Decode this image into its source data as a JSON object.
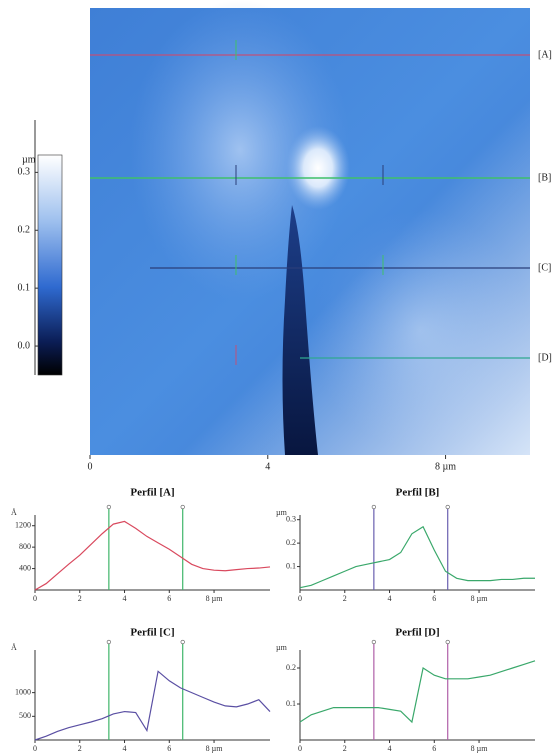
{
  "chart_data": [
    {
      "type": "image",
      "xlim": [
        0,
        9.9
      ],
      "xticks": [
        0,
        4,
        {
          "value": 8,
          "label": "8 µm"
        }
      ],
      "profile_labels": [
        "[A]",
        "[B]",
        "[C]",
        "[D]"
      ],
      "colorbar": {
        "unit": "µm",
        "lim": [
          -0.05,
          0.33
        ],
        "ticks": [
          {
            "value": 0,
            "label": "0.0"
          },
          0.1,
          0.2,
          0.3
        ]
      }
    },
    {
      "type": "line",
      "title": "Perfil [A]",
      "ylabel": "Å",
      "color": "#d9495e",
      "x": [
        0,
        0.5,
        1,
        1.5,
        2,
        2.5,
        3,
        3.5,
        4,
        4.5,
        5,
        5.5,
        6,
        6.5,
        7,
        7.5,
        8,
        8.5,
        9,
        9.5,
        10,
        10.5
      ],
      "values": [
        0,
        120,
        300,
        480,
        650,
        850,
        1050,
        1230,
        1280,
        1150,
        1000,
        880,
        760,
        620,
        480,
        400,
        370,
        360,
        380,
        400,
        410,
        430
      ],
      "xlim": [
        0,
        10.5
      ],
      "xticks": [
        0,
        2,
        4,
        6,
        {
          "value": 8,
          "label": "8 µm"
        }
      ],
      "ylim": [
        0,
        1400
      ],
      "yticks": [
        400,
        800,
        1200
      ],
      "cursors": [
        3.3,
        6.6
      ],
      "cursor_color": "#3fb56a"
    },
    {
      "type": "line",
      "title": "Perfil [B]",
      "ylabel": "µm",
      "color": "#3aa86b",
      "x": [
        0,
        0.5,
        1,
        1.5,
        2,
        2.5,
        3,
        3.5,
        4,
        4.5,
        5,
        5.5,
        6,
        6.5,
        7,
        7.5,
        8,
        8.5,
        9,
        9.5,
        10,
        10.5
      ],
      "values": [
        0.01,
        0.02,
        0.04,
        0.06,
        0.08,
        0.1,
        0.11,
        0.12,
        0.13,
        0.16,
        0.24,
        0.27,
        0.17,
        0.08,
        0.05,
        0.04,
        0.04,
        0.04,
        0.045,
        0.045,
        0.05,
        0.05
      ],
      "xlim": [
        0,
        10.5
      ],
      "xticks": [
        0,
        2,
        4,
        6,
        {
          "value": 8,
          "label": "8 µm"
        }
      ],
      "ylim": [
        0,
        0.32
      ],
      "yticks": [
        0.1,
        0.2,
        0.3
      ],
      "cursors": [
        3.3,
        6.6
      ],
      "cursor_color": "#6a5fb0"
    },
    {
      "type": "line",
      "title": "Perfil [C]",
      "ylabel": "Å",
      "color": "#5a4fa3",
      "x": [
        0,
        0.5,
        1,
        1.5,
        2,
        2.5,
        3,
        3.5,
        4,
        4.5,
        5,
        5.5,
        6,
        6.5,
        7,
        7.5,
        8,
        8.5,
        9,
        9.5,
        10,
        10.5
      ],
      "values": [
        0,
        80,
        180,
        260,
        320,
        380,
        450,
        550,
        600,
        580,
        200,
        1450,
        1250,
        1100,
        1000,
        900,
        800,
        720,
        700,
        760,
        850,
        600
      ],
      "xlim": [
        0,
        10.5
      ],
      "xticks": [
        0,
        2,
        4,
        6,
        {
          "value": 8,
          "label": "8 µm"
        }
      ],
      "ylim": [
        0,
        1900
      ],
      "yticks": [
        500,
        1000
      ],
      "cursors": [
        3.3,
        6.6
      ],
      "cursor_color": "#3fb56a"
    },
    {
      "type": "line",
      "title": "Perfil [D]",
      "ylabel": "µm",
      "color": "#3aa86b",
      "x": [
        0,
        0.5,
        1,
        1.5,
        2,
        2.5,
        3,
        3.5,
        4,
        4.5,
        5,
        5.5,
        6,
        6.5,
        7,
        7.5,
        8,
        8.5,
        9,
        9.5,
        10,
        10.5
      ],
      "values": [
        0.05,
        0.07,
        0.08,
        0.09,
        0.09,
        0.09,
        0.09,
        0.09,
        0.085,
        0.08,
        0.05,
        0.2,
        0.18,
        0.17,
        0.17,
        0.17,
        0.175,
        0.18,
        0.19,
        0.2,
        0.21,
        0.22
      ],
      "xlim": [
        0,
        10.5
      ],
      "xticks": [
        0,
        2,
        4,
        6,
        {
          "value": 8,
          "label": "8 µm"
        }
      ],
      "ylim": [
        0,
        0.25
      ],
      "yticks": [
        0.1,
        0.2
      ],
      "cursors": [
        3.3,
        6.6
      ],
      "cursor_color": "#b05fa8"
    }
  ]
}
